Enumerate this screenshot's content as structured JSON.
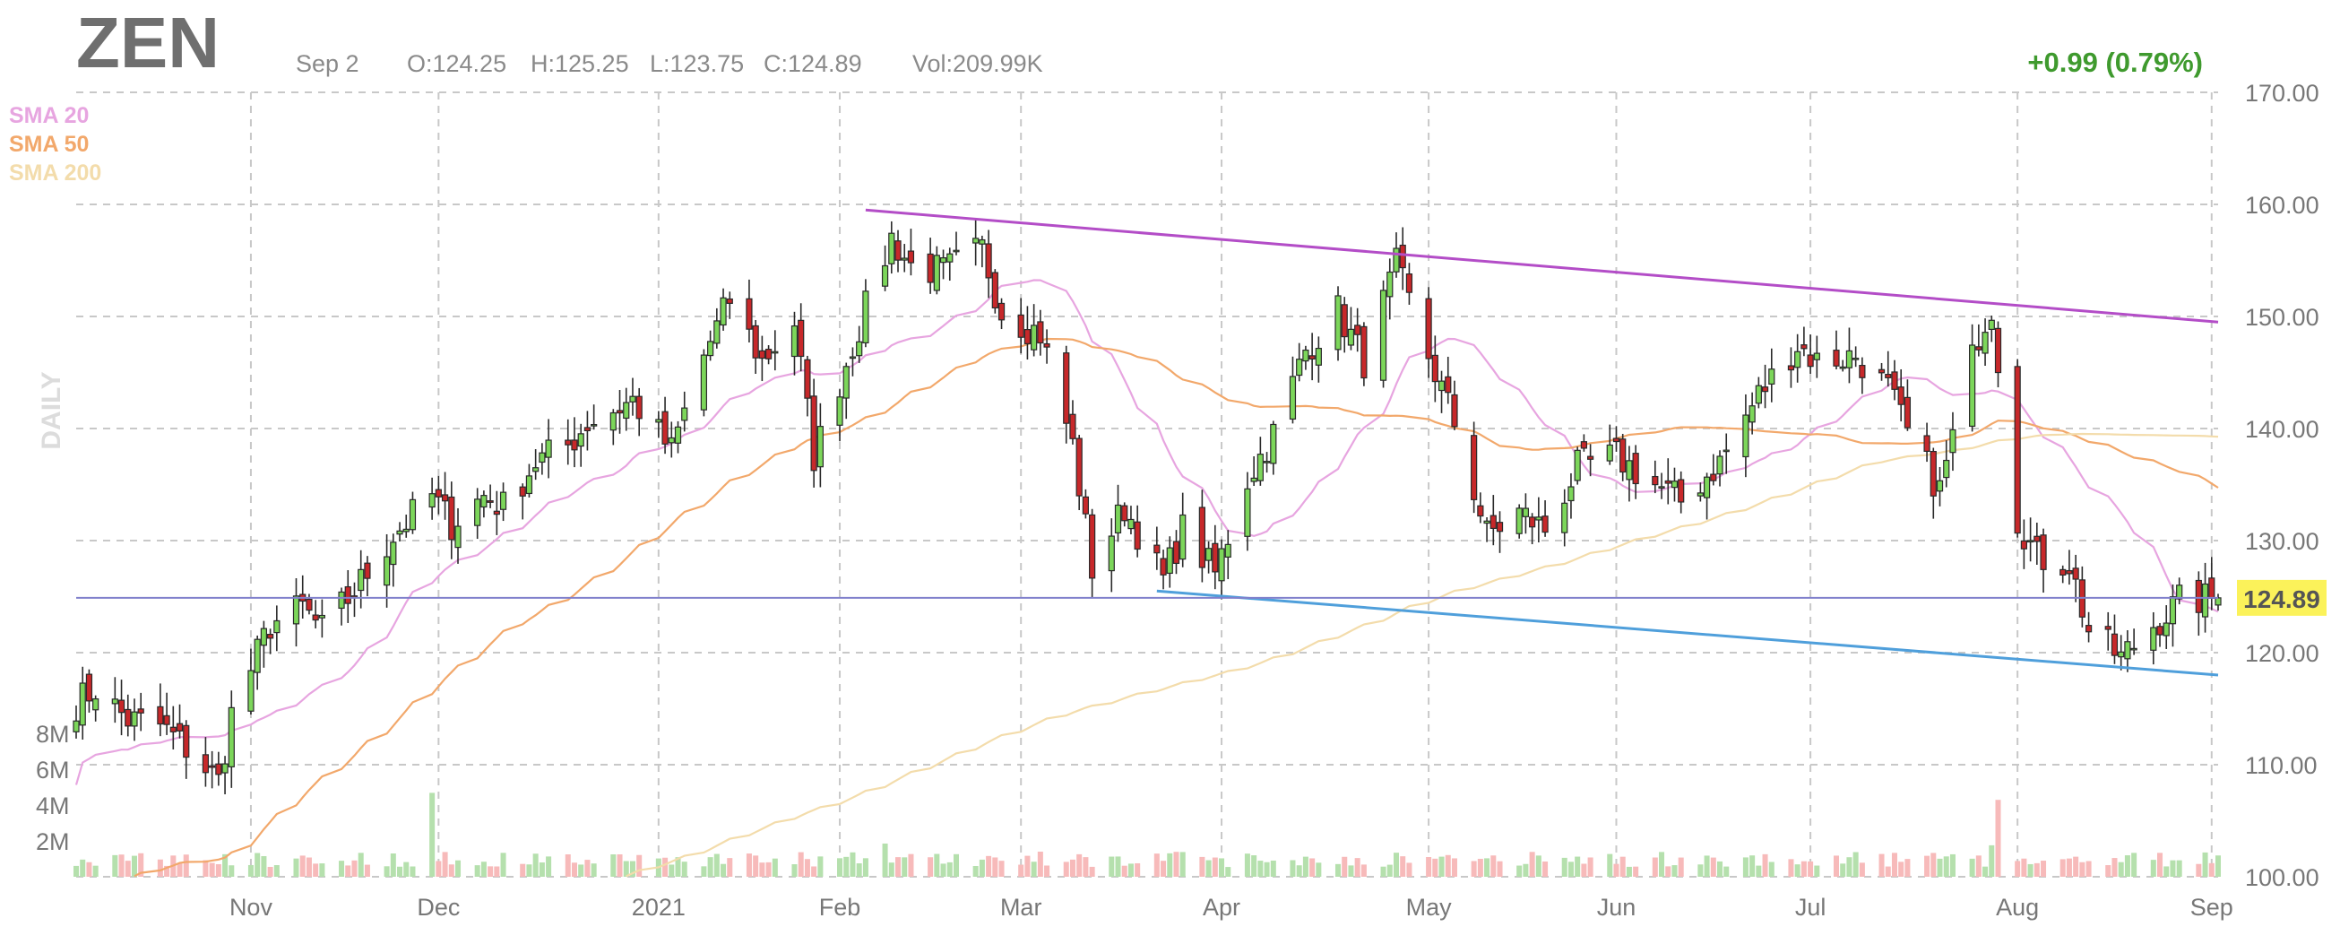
{
  "header": {
    "ticker": "ZEN",
    "date": "Sep 2",
    "open": "O:124.25",
    "high": "H:125.25",
    "low": "L:123.75",
    "close": "C:124.89",
    "volume": "Vol:209.99K",
    "change": "+0.99 (0.79%)",
    "period_label": "DAILY",
    "change_color": "#3f9a2e"
  },
  "legend": [
    {
      "label": "SMA 20",
      "color": "#e7a5e0"
    },
    {
      "label": "SMA 50",
      "color": "#f2a86b"
    },
    {
      "label": "SMA 200",
      "color": "#f3dcab"
    }
  ],
  "colors": {
    "up": "#7cd65a",
    "down": "#c7282a",
    "vol_up": "#b5e0ad",
    "vol_down": "#f7baba",
    "resistance": "#b34dc7",
    "support": "#4f9fdb",
    "price_line": "#8080cc",
    "price_tag": "#fbf25a"
  },
  "chart_data": {
    "type": "candlestick",
    "ylim": [
      100,
      170
    ],
    "y_ticks": [
      "100.00",
      "110.00",
      "120.00",
      "130.00",
      "140.00",
      "150.00",
      "160.00",
      "170.00"
    ],
    "volume_ticks": [
      "2M",
      "4M",
      "6M",
      "8M"
    ],
    "x_ticks": [
      {
        "label": "Nov",
        "date": "2020-11-02"
      },
      {
        "label": "Dec",
        "date": "2020-12-01"
      },
      {
        "label": "2021",
        "date": "2021-01-04"
      },
      {
        "label": "Feb",
        "date": "2021-02-01"
      },
      {
        "label": "Mar",
        "date": "2021-03-01"
      },
      {
        "label": "Apr",
        "date": "2021-04-01"
      },
      {
        "label": "May",
        "date": "2021-05-03"
      },
      {
        "label": "Jun",
        "date": "2021-06-01"
      },
      {
        "label": "Jul",
        "date": "2021-07-01"
      },
      {
        "label": "Aug",
        "date": "2021-08-02"
      },
      {
        "label": "Sep",
        "date": "2021-09-01"
      }
    ],
    "date_range": [
      "2020-10-06",
      "2021-09-02"
    ],
    "current_price": "124.89",
    "trend_lines": [
      {
        "name": "resistance",
        "points": [
          [
            "2021-02-05",
            159.5
          ],
          [
            "2021-09-02",
            149.5
          ]
        ]
      },
      {
        "name": "support",
        "points": [
          [
            "2021-03-22",
            125.5
          ],
          [
            "2021-09-02",
            118.0
          ]
        ]
      }
    ],
    "anchors": [
      [
        "2020-10-06",
        115.5
      ],
      [
        "2020-10-09",
        116.8
      ],
      [
        "2020-10-14",
        114.0
      ],
      [
        "2020-10-19",
        113.5
      ],
      [
        "2020-10-23",
        111.5
      ],
      [
        "2020-10-28",
        108.5
      ],
      [
        "2020-10-30",
        114.5
      ],
      [
        "2020-11-05",
        122.5
      ],
      [
        "2020-11-10",
        124.0
      ],
      [
        "2020-11-13",
        122.0
      ],
      [
        "2020-11-18",
        125.5
      ],
      [
        "2020-11-24",
        130.5
      ],
      [
        "2020-11-30",
        134.0
      ],
      [
        "2020-12-03",
        131.5
      ],
      [
        "2020-12-08",
        134.0
      ],
      [
        "2020-12-11",
        133.0
      ],
      [
        "2020-12-16",
        137.0
      ],
      [
        "2020-12-21",
        138.5
      ],
      [
        "2020-12-24",
        140.5
      ],
      [
        "2020-12-31",
        142.5
      ],
      [
        "2021-01-06",
        138.0
      ],
      [
        "2021-01-11",
        146.5
      ],
      [
        "2021-01-15",
        151.5
      ],
      [
        "2021-01-20",
        146.0
      ],
      [
        "2021-01-25",
        149.5
      ],
      [
        "2021-01-28",
        137.5
      ],
      [
        "2021-02-03",
        147.5
      ],
      [
        "2021-02-09",
        157.0
      ],
      [
        "2021-02-12",
        154.5
      ],
      [
        "2021-02-17",
        154.0
      ],
      [
        "2021-02-23",
        156.0
      ],
      [
        "2021-02-26",
        150.5
      ],
      [
        "2021-03-04",
        148.5
      ],
      [
        "2021-03-09",
        138.5
      ],
      [
        "2021-03-12",
        127.5
      ],
      [
        "2021-03-17",
        133.0
      ],
      [
        "2021-03-23",
        126.5
      ],
      [
        "2021-03-26",
        131.0
      ],
      [
        "2021-03-31",
        127.0
      ],
      [
        "2021-04-05",
        135.5
      ],
      [
        "2021-04-09",
        139.5
      ],
      [
        "2021-04-14",
        147.0
      ],
      [
        "2021-04-19",
        150.5
      ],
      [
        "2021-04-23",
        146.0
      ],
      [
        "2021-04-28",
        154.5
      ],
      [
        "2021-05-03",
        146.5
      ],
      [
        "2021-05-07",
        140.5
      ],
      [
        "2021-05-12",
        130.5
      ],
      [
        "2021-05-17",
        132.5
      ],
      [
        "2021-05-21",
        131.0
      ],
      [
        "2021-05-26",
        136.5
      ],
      [
        "2021-06-01",
        137.5
      ],
      [
        "2021-06-07",
        135.0
      ],
      [
        "2021-06-11",
        133.5
      ],
      [
        "2021-06-17",
        137.0
      ],
      [
        "2021-06-23",
        143.0
      ],
      [
        "2021-06-29",
        147.5
      ],
      [
        "2021-07-02",
        146.0
      ],
      [
        "2021-07-08",
        146.5
      ],
      [
        "2021-07-13",
        143.5
      ],
      [
        "2021-07-16",
        139.5
      ],
      [
        "2021-07-21",
        134.5
      ],
      [
        "2021-07-27",
        148.5
      ],
      [
        "2021-07-29",
        151.0
      ],
      [
        "2021-08-02",
        132.0
      ],
      [
        "2021-08-05",
        128.5
      ],
      [
        "2021-08-10",
        128.0
      ],
      [
        "2021-08-13",
        122.0
      ],
      [
        "2021-08-18",
        119.5
      ],
      [
        "2021-08-23",
        122.5
      ],
      [
        "2021-08-27",
        124.5
      ],
      [
        "2021-09-02",
        124.89
      ]
    ]
  }
}
